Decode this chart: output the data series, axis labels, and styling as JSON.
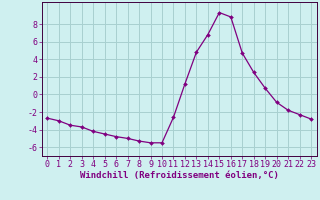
{
  "x": [
    0,
    1,
    2,
    3,
    4,
    5,
    6,
    7,
    8,
    9,
    10,
    11,
    12,
    13,
    14,
    15,
    16,
    17,
    18,
    19,
    20,
    21,
    22,
    23
  ],
  "y": [
    -2.7,
    -3.0,
    -3.5,
    -3.7,
    -4.2,
    -4.5,
    -4.8,
    -5.0,
    -5.3,
    -5.5,
    -5.5,
    -2.6,
    1.2,
    4.8,
    6.8,
    9.3,
    8.8,
    4.7,
    2.5,
    0.7,
    -0.9,
    -1.8,
    -2.3,
    -2.8
  ],
  "line_color": "#800080",
  "marker": "D",
  "marker_size": 2.0,
  "bg_color": "#cff0f0",
  "grid_color": "#a8d0d0",
  "axis_color": "#400040",
  "tick_color": "#800080",
  "xlabel": "Windchill (Refroidissement éolien,°C)",
  "xlabel_fontsize": 6.5,
  "tick_fontsize": 6.0,
  "ylim": [
    -7,
    10.5
  ],
  "xlim": [
    -0.5,
    23.5
  ],
  "yticks": [
    -6,
    -4,
    -2,
    0,
    2,
    4,
    6,
    8
  ],
  "xticks": [
    0,
    1,
    2,
    3,
    4,
    5,
    6,
    7,
    8,
    9,
    10,
    11,
    12,
    13,
    14,
    15,
    16,
    17,
    18,
    19,
    20,
    21,
    22,
    23
  ]
}
